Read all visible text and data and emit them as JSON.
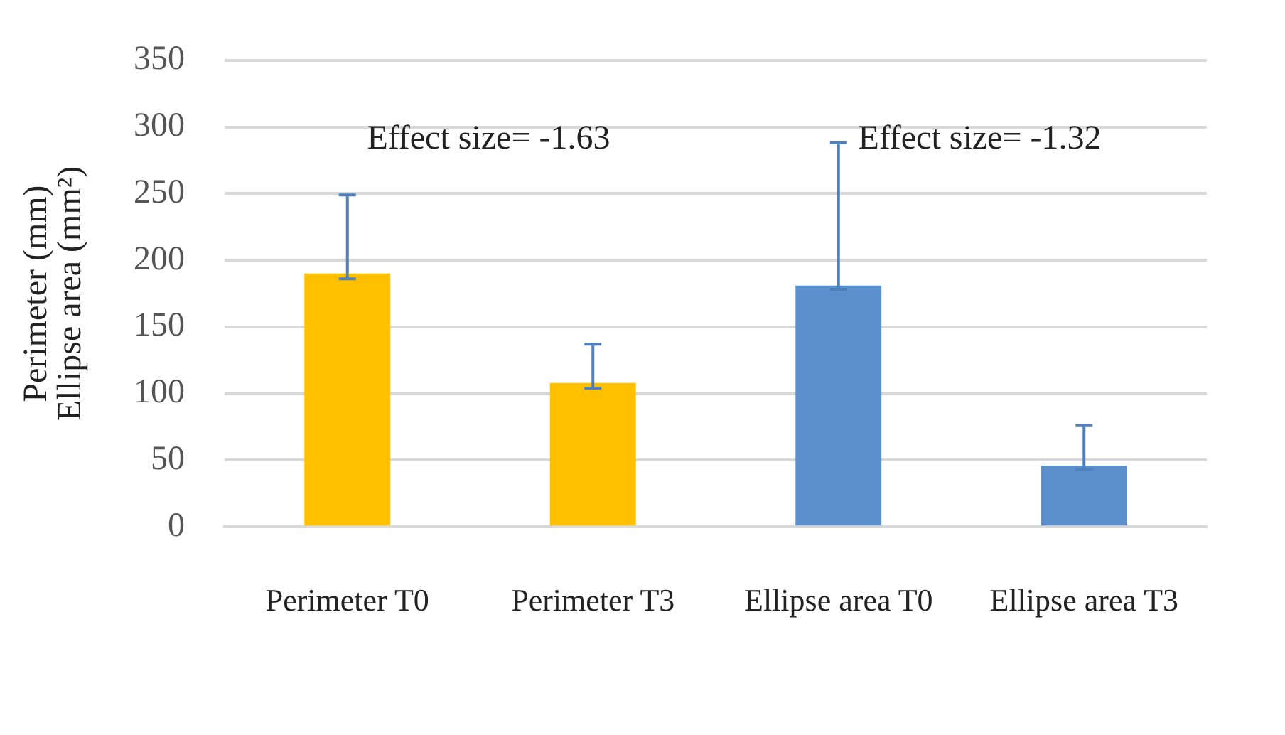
{
  "chart_data": {
    "type": "bar",
    "ylabel": [
      "Perimeter (mm)",
      "Ellipse area (mm²)"
    ],
    "categories": [
      "Perimeter T0",
      "Perimeter T3",
      "Ellipse area T0",
      "Ellipse area T3"
    ],
    "values": [
      190,
      108,
      181,
      46
    ],
    "colors": [
      "#ffc000",
      "#ffc000",
      "#5b8fcc",
      "#5b8fcc"
    ],
    "errors": [
      [
        186,
        249
      ],
      [
        104,
        137
      ],
      [
        178,
        288
      ],
      [
        43,
        76
      ]
    ],
    "ylim": [
      0,
      350
    ],
    "yticks": [
      0,
      50,
      100,
      150,
      200,
      250,
      300,
      350
    ],
    "grid": "y",
    "annotations": [
      "Effect size= -1.63",
      "Effect size= -1.32"
    ]
  }
}
